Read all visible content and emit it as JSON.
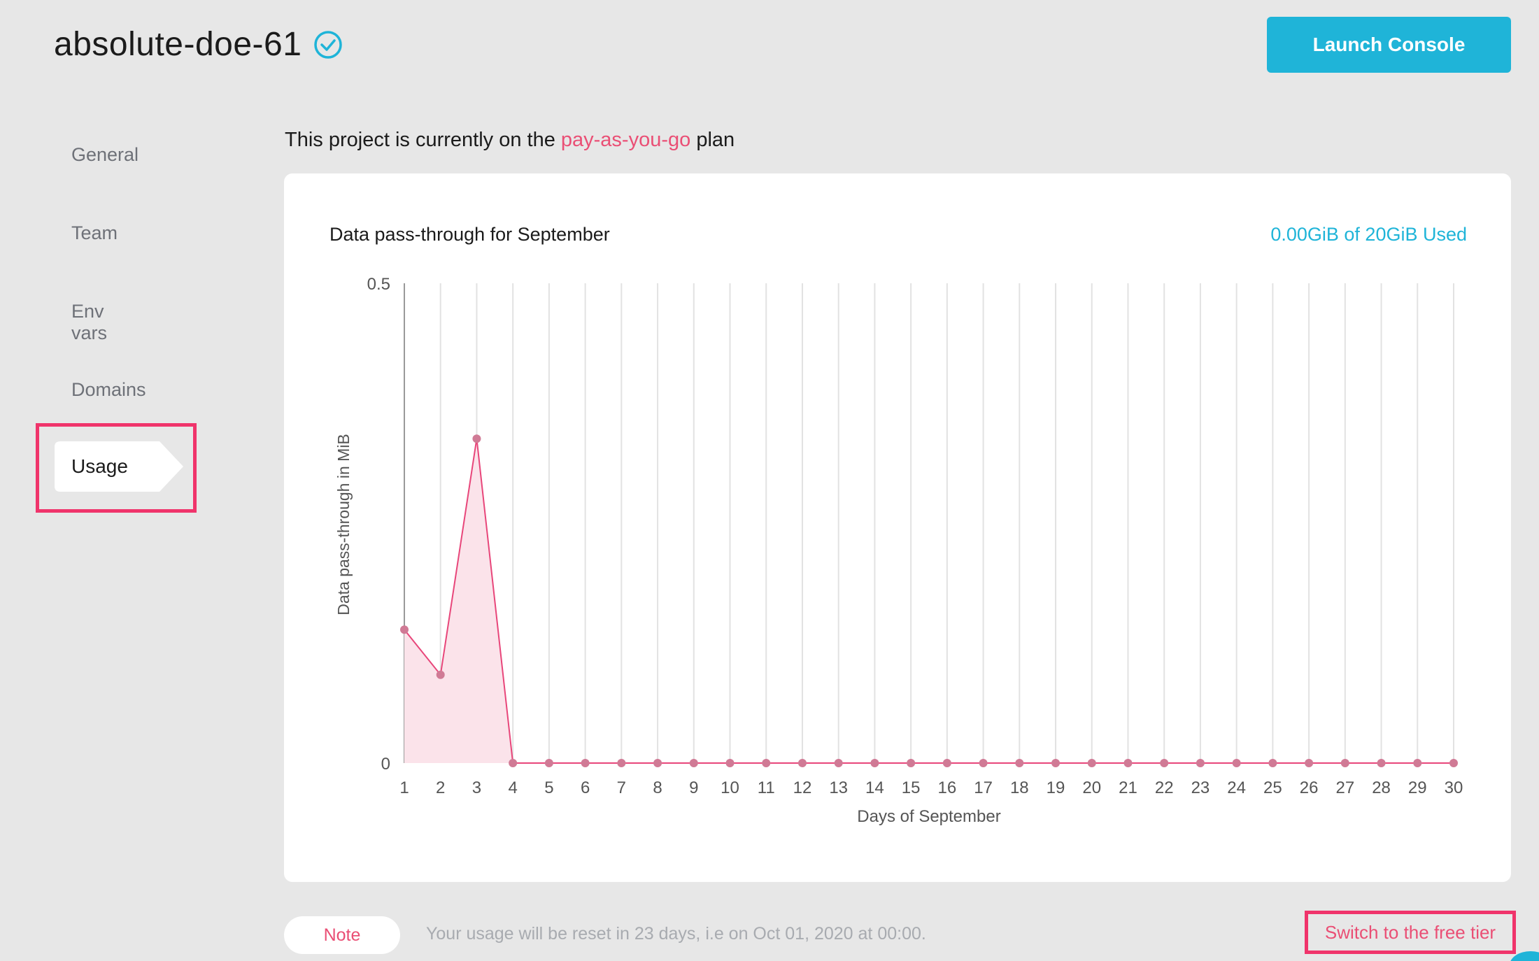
{
  "header": {
    "project_name": "absolute-doe-61",
    "launch_label": "Launch Console"
  },
  "sidebar": {
    "items": [
      {
        "label": "General"
      },
      {
        "label": "Team"
      },
      {
        "label": "Env vars"
      },
      {
        "label": "Domains"
      },
      {
        "label": "Usage"
      }
    ],
    "active": "Usage"
  },
  "plan": {
    "prefix": "This project is currently on the",
    "name": "pay-as-you-go",
    "suffix": "plan"
  },
  "card": {
    "title": "Data pass-through for September",
    "usage": "0.00GiB of 20GiB Used"
  },
  "chart_data": {
    "type": "area",
    "title": "Data pass-through for September",
    "xlabel": "Days of September",
    "ylabel": "Data pass-through in MiB",
    "x": [
      1,
      2,
      3,
      4,
      5,
      6,
      7,
      8,
      9,
      10,
      11,
      12,
      13,
      14,
      15,
      16,
      17,
      18,
      19,
      20,
      21,
      22,
      23,
      24,
      25,
      26,
      27,
      28,
      29,
      30
    ],
    "values": [
      0.139,
      0.092,
      0.338,
      0,
      0,
      0,
      0,
      0,
      0,
      0,
      0,
      0,
      0,
      0,
      0,
      0,
      0,
      0,
      0,
      0,
      0,
      0,
      0,
      0,
      0,
      0,
      0,
      0,
      0,
      0
    ],
    "ylim": [
      0,
      0.5
    ],
    "yticks": [
      "0",
      "0.5"
    ],
    "grid": "vertical",
    "colors": {
      "line": "#e8467a",
      "fill": "#fbe3ea",
      "point": "#d07a95"
    }
  },
  "footer": {
    "note_label": "Note",
    "note_text": "Your usage will be reset in 23 days, i.e on Oct 01, 2020 at 00:00.",
    "switch_label": "Switch to the free tier"
  }
}
